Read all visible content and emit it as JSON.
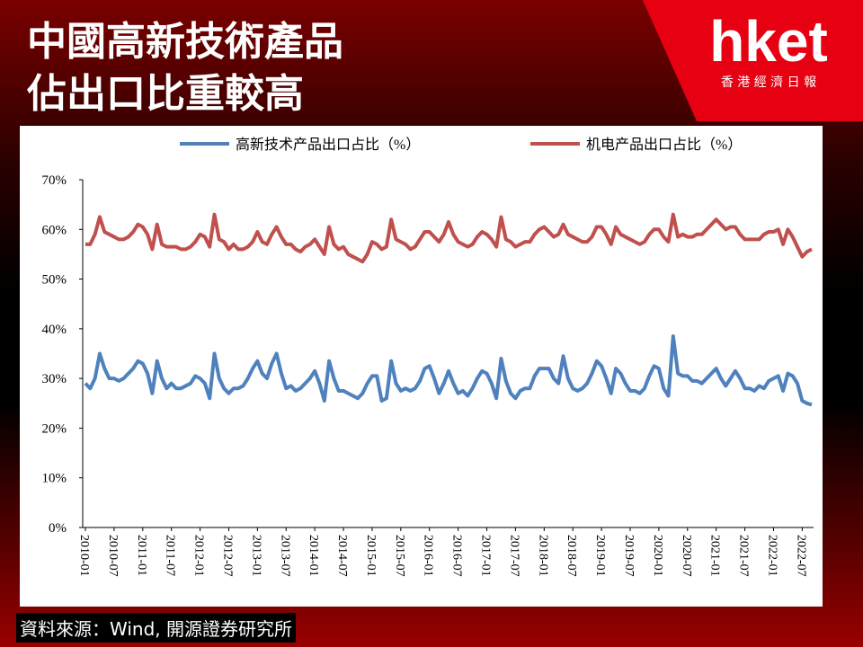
{
  "header": {
    "title_lines": [
      "中國高新技術產品",
      "佔出口比重較高"
    ]
  },
  "logo": {
    "brand": "hket",
    "subtitle": "香 港 經 濟 日 報"
  },
  "source": "資料來源：Wind, 開源證券研究所",
  "chart_data": {
    "type": "line",
    "categories": [
      "2010-01",
      null,
      null,
      null,
      null,
      null,
      "2010-07",
      null,
      null,
      null,
      null,
      null,
      "2011-01",
      null,
      null,
      null,
      null,
      null,
      "2011-07",
      null,
      null,
      null,
      null,
      null,
      "2012-01",
      null,
      null,
      null,
      null,
      null,
      "2012-07",
      null,
      null,
      null,
      null,
      null,
      "2013-01",
      null,
      null,
      null,
      null,
      null,
      "2013-07",
      null,
      null,
      null,
      null,
      null,
      "2014-01",
      null,
      null,
      null,
      null,
      null,
      "2014-07",
      null,
      null,
      null,
      null,
      null,
      "2015-01",
      null,
      null,
      null,
      null,
      null,
      "2015-07",
      null,
      null,
      null,
      null,
      null,
      "2016-01",
      null,
      null,
      null,
      null,
      null,
      "2016-07",
      null,
      null,
      null,
      null,
      null,
      "2017-01",
      null,
      null,
      null,
      null,
      null,
      "2017-07",
      null,
      null,
      null,
      null,
      null,
      "2018-01",
      null,
      null,
      null,
      null,
      null,
      "2018-07",
      null,
      null,
      null,
      null,
      null,
      "2019-01",
      null,
      null,
      null,
      null,
      null,
      "2019-07",
      null,
      null,
      null,
      null,
      null,
      "2020-01",
      null,
      null,
      null,
      null,
      null,
      "2020-07",
      null,
      null,
      null,
      null,
      null,
      "2021-01",
      null,
      null,
      null,
      null,
      null,
      "2021-07",
      null,
      null,
      null,
      null,
      null,
      "2022-01",
      null,
      null,
      null,
      null,
      null,
      "2022-07",
      null,
      null
    ],
    "series": [
      {
        "name": "高新技术产品出口占比（%）",
        "color": "#4f81bd",
        "values": [
          29,
          28,
          30,
          35,
          32,
          30,
          30,
          29.5,
          30,
          31,
          32,
          33.5,
          33,
          31,
          27,
          33.5,
          30,
          28,
          29,
          28,
          28,
          28.5,
          29,
          30.5,
          30,
          29,
          26,
          35,
          30,
          28,
          27,
          28,
          28,
          28.5,
          30,
          32,
          33.5,
          31,
          30,
          33,
          35,
          31,
          28,
          28.5,
          27.5,
          28,
          29,
          30,
          31.5,
          29,
          25.5,
          33.5,
          30,
          27.5,
          27.5,
          27,
          26.5,
          26,
          27,
          29,
          30.5,
          30.5,
          25.5,
          26,
          33.5,
          29,
          27.5,
          28,
          27.5,
          28,
          29.5,
          32,
          32.5,
          30,
          27,
          29,
          31.5,
          29,
          27,
          27.5,
          26.5,
          28,
          30,
          31.5,
          31,
          29,
          26,
          34,
          29.5,
          27,
          26,
          27.5,
          28,
          28,
          30.5,
          32,
          32,
          32,
          30,
          29,
          34.5,
          30,
          28,
          27.5,
          28,
          29,
          31,
          33.5,
          32.5,
          30,
          27,
          32,
          31,
          29,
          27.5,
          27.5,
          27,
          28,
          30.5,
          32.5,
          32,
          28,
          26.5,
          38.5,
          31,
          30.5,
          30.5,
          29.5,
          29.5,
          29,
          30,
          31,
          32,
          30,
          28.5,
          30,
          31.5,
          30,
          28,
          28,
          27.5,
          28.5,
          28,
          29.5,
          30,
          30.5,
          27.5,
          31,
          30.5,
          29,
          25.5,
          25,
          24.7
        ]
      },
      {
        "name": "机电产品出口占比（%）",
        "color": "#c0504d",
        "values": [
          57,
          57,
          59,
          62.5,
          59.5,
          59,
          58.5,
          58,
          58,
          58.5,
          59.5,
          61,
          60.5,
          59,
          56,
          61,
          57,
          56.5,
          56.5,
          56.5,
          56,
          56,
          56.5,
          57.5,
          59,
          58.5,
          56.5,
          63,
          58,
          57.5,
          56,
          57,
          56,
          56,
          56.5,
          57.5,
          59.5,
          57.5,
          57,
          59,
          60.5,
          58.5,
          57,
          57,
          56,
          55.5,
          56.5,
          57,
          58,
          56.5,
          55,
          60.5,
          57,
          56,
          56.5,
          55,
          54.5,
          54,
          53.5,
          55,
          57.5,
          57,
          56,
          56.5,
          62,
          58,
          57.5,
          57,
          56,
          56.5,
          58,
          59.5,
          59.5,
          58.5,
          57.5,
          59,
          61.5,
          59,
          57.5,
          57,
          56.5,
          57,
          58.5,
          59.5,
          59,
          58,
          56.5,
          62.5,
          58,
          57.5,
          56.5,
          57,
          57.5,
          57.5,
          59,
          60,
          60.5,
          59.5,
          58.5,
          59,
          61,
          59,
          58.5,
          58,
          57.5,
          57.5,
          58.5,
          60.5,
          60.5,
          59,
          57,
          60.5,
          59,
          58.5,
          58,
          57.5,
          57,
          57.5,
          59,
          60,
          60,
          58.5,
          57.5,
          63,
          58.5,
          59,
          58.5,
          58.5,
          59,
          59,
          60,
          61,
          62,
          61,
          60,
          60.5,
          60.5,
          59,
          58,
          58,
          58,
          58,
          59,
          59.5,
          59.5,
          60,
          57,
          60,
          58.5,
          56.5,
          54.5,
          55.5,
          56
        ]
      }
    ],
    "ylim": [
      0,
      70
    ],
    "yticks": [
      {
        "value": 0,
        "label": "0%"
      },
      {
        "value": 10,
        "label": "10%"
      },
      {
        "value": 20,
        "label": "20%"
      },
      {
        "value": 30,
        "label": "30%"
      },
      {
        "value": 40,
        "label": "40%"
      },
      {
        "value": 50,
        "label": "50%"
      },
      {
        "value": 60,
        "label": "60%"
      },
      {
        "value": 70,
        "label": "70%"
      }
    ],
    "grid": false,
    "legend": "top"
  }
}
